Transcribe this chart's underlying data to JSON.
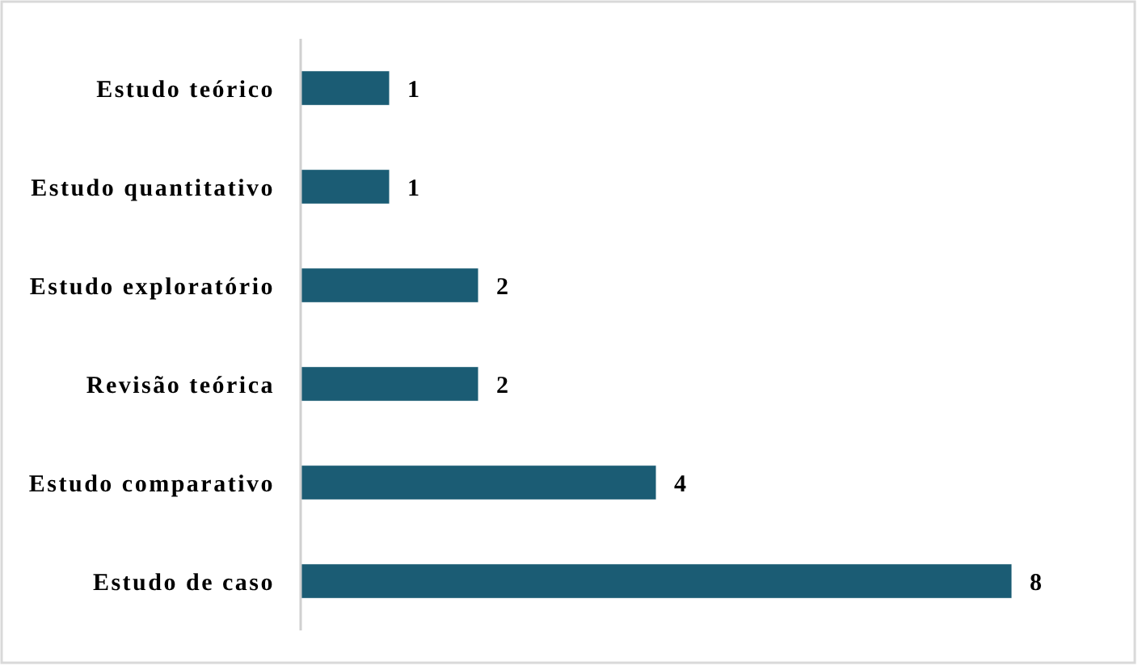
{
  "chart_data": {
    "type": "bar",
    "orientation": "horizontal",
    "categories": [
      "Estudo teórico",
      "Estudo quantitativo",
      "Estudo exploratório",
      "Revisão teórica",
      "Estudo comparativo",
      "Estudo de caso"
    ],
    "values": [
      1,
      1,
      2,
      2,
      4,
      8
    ],
    "color": "#1b5c74",
    "data_labels": true,
    "tick_labels": "y"
  }
}
